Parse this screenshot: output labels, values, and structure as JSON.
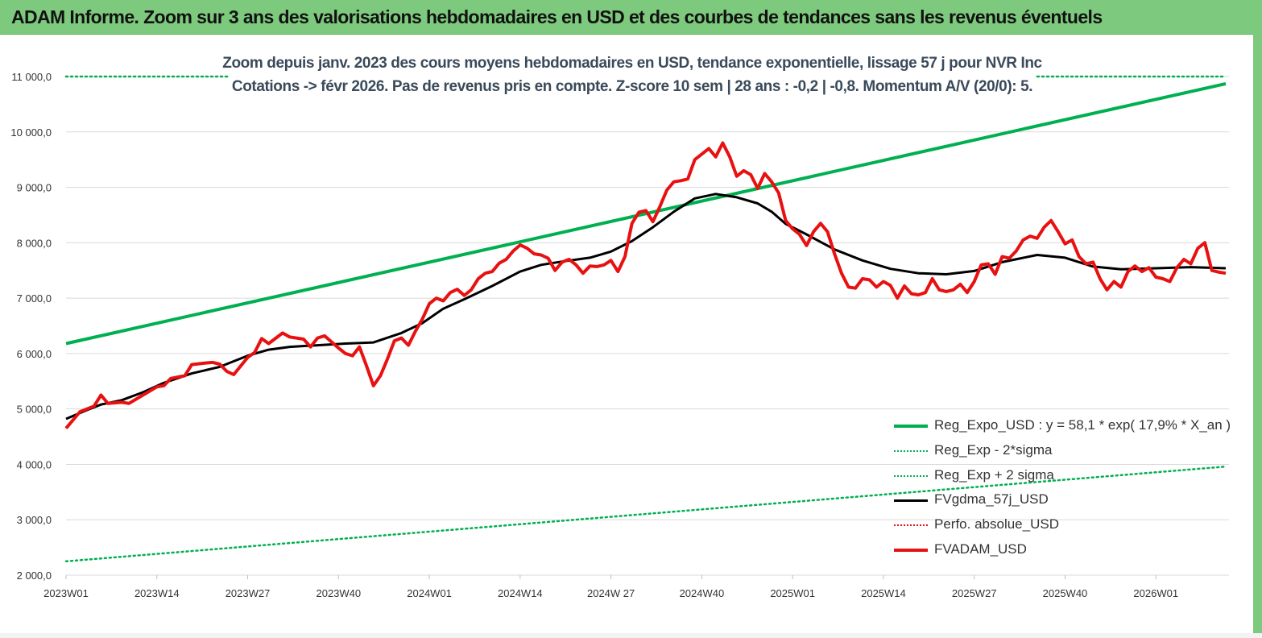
{
  "header": {
    "title": "ADAM Informe. Zoom sur 3 ans des valorisations hebdomadaires en USD et des courbes de tendances sans les revenus éventuels"
  },
  "colors": {
    "header_bg": "#7dc97d",
    "regression": "#00b050",
    "band": "#00b050",
    "smoothed": "#000000",
    "price": "#e81010",
    "perfo": "#e81010",
    "grid": "#d9d9d9"
  },
  "chart_data": {
    "type": "line",
    "title_line1": "Zoom depuis janv. 2023 des cours moyens hebdomadaires en USD, tendance exponentielle, lissage 57 j pour NVR Inc",
    "title_line2": "Cotations -> févr 2026.  Pas de revenus pris en compte. Z-score 10 sem | 28 ans : -0,2 | -0,8. Momentum A/V (20/0): 5.",
    "xlabel": "",
    "ylabel": "",
    "ylim": [
      2000,
      11000
    ],
    "yticks": [
      2000,
      3000,
      4000,
      5000,
      6000,
      7000,
      8000,
      9000,
      10000,
      11000
    ],
    "ytick_labels": [
      "2 000,0",
      "3 000,0",
      "4 000,0",
      "5 000,0",
      "6 000,0",
      "7 000,0",
      "8 000,0",
      "9 000,0",
      "10 000,0",
      "11 000,0"
    ],
    "x_range_weeks": [
      0,
      166
    ],
    "xtick_weeks": [
      0,
      13,
      26,
      39,
      52,
      65,
      78,
      91,
      104,
      117,
      130,
      143,
      156
    ],
    "xtick_labels": [
      "2023W01",
      "2023W14",
      "2023W27",
      "2023W40",
      "2024W01",
      "2024W14",
      "2024W 27",
      "2024W40",
      "2025W01",
      "2025W14",
      "2025W27",
      "2025W40",
      "2026W01"
    ],
    "grid": "horizontal",
    "legend_position": "bottom-right",
    "series": [
      {
        "name": "Reg_Expo_USD : y = 58,1 * exp( 17,9% *  X_an )",
        "style": "solid-thick",
        "color": "#00b050",
        "points": [
          [
            0,
            6180
          ],
          [
            166,
            10870
          ]
        ]
      },
      {
        "name": "Reg_Exp - 2*sigma",
        "style": "dotted",
        "color": "#00b050",
        "points": [
          [
            0,
            2250
          ],
          [
            166,
            3960
          ]
        ]
      },
      {
        "name": "Reg_Exp + 2 sigma",
        "style": "dotted",
        "color": "#00b050",
        "points": [
          [
            0,
            11000
          ],
          [
            166,
            11000
          ]
        ]
      },
      {
        "name": "FVgdma_57j_USD",
        "style": "solid",
        "color": "#000000",
        "points": [
          [
            0,
            4820
          ],
          [
            3,
            4980
          ],
          [
            5,
            5080
          ],
          [
            8,
            5160
          ],
          [
            11,
            5300
          ],
          [
            14,
            5470
          ],
          [
            18,
            5640
          ],
          [
            22,
            5760
          ],
          [
            26,
            5960
          ],
          [
            29,
            6070
          ],
          [
            32,
            6120
          ],
          [
            36,
            6150
          ],
          [
            40,
            6180
          ],
          [
            44,
            6200
          ],
          [
            48,
            6370
          ],
          [
            51,
            6550
          ],
          [
            54,
            6810
          ],
          [
            57,
            6980
          ],
          [
            61,
            7220
          ],
          [
            65,
            7480
          ],
          [
            68,
            7600
          ],
          [
            71,
            7660
          ],
          [
            75,
            7730
          ],
          [
            78,
            7840
          ],
          [
            81,
            8030
          ],
          [
            84,
            8280
          ],
          [
            87,
            8560
          ],
          [
            90,
            8800
          ],
          [
            93,
            8880
          ],
          [
            96,
            8820
          ],
          [
            99,
            8710
          ],
          [
            101,
            8560
          ],
          [
            103,
            8340
          ],
          [
            106,
            8150
          ],
          [
            110,
            7880
          ],
          [
            114,
            7680
          ],
          [
            118,
            7530
          ],
          [
            122,
            7450
          ],
          [
            126,
            7430
          ],
          [
            130,
            7490
          ],
          [
            134,
            7650
          ],
          [
            139,
            7780
          ],
          [
            143,
            7730
          ],
          [
            147,
            7570
          ],
          [
            151,
            7520
          ],
          [
            156,
            7540
          ],
          [
            161,
            7560
          ],
          [
            166,
            7540
          ]
        ]
      },
      {
        "name": "Perfo. absolue_USD",
        "style": "dotted",
        "color": "#e81010",
        "points": []
      },
      {
        "name": "FVADAM_USD",
        "style": "solid-thick",
        "color": "#e81010",
        "points": [
          [
            0,
            4650
          ],
          [
            2,
            4950
          ],
          [
            4,
            5050
          ],
          [
            5,
            5250
          ],
          [
            6,
            5100
          ],
          [
            8,
            5120
          ],
          [
            9,
            5100
          ],
          [
            11,
            5250
          ],
          [
            13,
            5400
          ],
          [
            14,
            5420
          ],
          [
            15,
            5550
          ],
          [
            17,
            5600
          ],
          [
            18,
            5800
          ],
          [
            20,
            5830
          ],
          [
            21,
            5840
          ],
          [
            22,
            5810
          ],
          [
            23,
            5680
          ],
          [
            24,
            5620
          ],
          [
            26,
            5930
          ],
          [
            27,
            6020
          ],
          [
            28,
            6270
          ],
          [
            29,
            6180
          ],
          [
            31,
            6370
          ],
          [
            32,
            6300
          ],
          [
            34,
            6260
          ],
          [
            35,
            6120
          ],
          [
            36,
            6280
          ],
          [
            37,
            6320
          ],
          [
            39,
            6100
          ],
          [
            40,
            6000
          ],
          [
            41,
            5960
          ],
          [
            42,
            6120
          ],
          [
            43,
            5780
          ],
          [
            44,
            5420
          ],
          [
            45,
            5600
          ],
          [
            46,
            5900
          ],
          [
            47,
            6230
          ],
          [
            48,
            6280
          ],
          [
            49,
            6150
          ],
          [
            50,
            6400
          ],
          [
            51,
            6620
          ],
          [
            52,
            6900
          ],
          [
            53,
            7000
          ],
          [
            54,
            6950
          ],
          [
            55,
            7100
          ],
          [
            56,
            7160
          ],
          [
            57,
            7050
          ],
          [
            58,
            7150
          ],
          [
            59,
            7350
          ],
          [
            60,
            7450
          ],
          [
            61,
            7480
          ],
          [
            62,
            7630
          ],
          [
            63,
            7700
          ],
          [
            64,
            7850
          ],
          [
            65,
            7960
          ],
          [
            66,
            7900
          ],
          [
            67,
            7800
          ],
          [
            68,
            7780
          ],
          [
            69,
            7720
          ],
          [
            70,
            7500
          ],
          [
            71,
            7650
          ],
          [
            72,
            7700
          ],
          [
            73,
            7600
          ],
          [
            74,
            7450
          ],
          [
            75,
            7580
          ],
          [
            76,
            7570
          ],
          [
            77,
            7600
          ],
          [
            78,
            7680
          ],
          [
            79,
            7480
          ],
          [
            80,
            7750
          ],
          [
            81,
            8350
          ],
          [
            82,
            8550
          ],
          [
            83,
            8580
          ],
          [
            84,
            8380
          ],
          [
            85,
            8650
          ],
          [
            86,
            8950
          ],
          [
            87,
            9100
          ],
          [
            88,
            9120
          ],
          [
            89,
            9150
          ],
          [
            90,
            9500
          ],
          [
            91,
            9600
          ],
          [
            92,
            9700
          ],
          [
            93,
            9550
          ],
          [
            94,
            9800
          ],
          [
            95,
            9550
          ],
          [
            96,
            9200
          ],
          [
            97,
            9300
          ],
          [
            98,
            9230
          ],
          [
            99,
            8980
          ],
          [
            100,
            9250
          ],
          [
            101,
            9100
          ],
          [
            102,
            8900
          ],
          [
            103,
            8400
          ],
          [
            104,
            8250
          ],
          [
            105,
            8150
          ],
          [
            106,
            7950
          ],
          [
            107,
            8200
          ],
          [
            108,
            8350
          ],
          [
            109,
            8200
          ],
          [
            110,
            7800
          ],
          [
            111,
            7450
          ],
          [
            112,
            7200
          ],
          [
            113,
            7180
          ],
          [
            114,
            7350
          ],
          [
            115,
            7330
          ],
          [
            116,
            7200
          ],
          [
            117,
            7300
          ],
          [
            118,
            7230
          ],
          [
            119,
            7000
          ],
          [
            120,
            7220
          ],
          [
            121,
            7080
          ],
          [
            122,
            7060
          ],
          [
            123,
            7100
          ],
          [
            124,
            7350
          ],
          [
            125,
            7150
          ],
          [
            126,
            7120
          ],
          [
            127,
            7150
          ],
          [
            128,
            7250
          ],
          [
            129,
            7100
          ],
          [
            130,
            7300
          ],
          [
            131,
            7600
          ],
          [
            132,
            7620
          ],
          [
            133,
            7430
          ],
          [
            134,
            7750
          ],
          [
            135,
            7720
          ],
          [
            136,
            7850
          ],
          [
            137,
            8050
          ],
          [
            138,
            8120
          ],
          [
            139,
            8080
          ],
          [
            140,
            8280
          ],
          [
            141,
            8400
          ],
          [
            142,
            8200
          ],
          [
            143,
            7980
          ],
          [
            144,
            8050
          ],
          [
            145,
            7750
          ],
          [
            146,
            7620
          ],
          [
            147,
            7650
          ],
          [
            148,
            7350
          ],
          [
            149,
            7150
          ],
          [
            150,
            7300
          ],
          [
            151,
            7200
          ],
          [
            152,
            7480
          ],
          [
            153,
            7580
          ],
          [
            154,
            7480
          ],
          [
            155,
            7550
          ],
          [
            156,
            7380
          ],
          [
            157,
            7350
          ],
          [
            158,
            7300
          ],
          [
            159,
            7550
          ],
          [
            160,
            7700
          ],
          [
            161,
            7620
          ],
          [
            162,
            7900
          ],
          [
            163,
            8000
          ],
          [
            164,
            7500
          ],
          [
            165,
            7470
          ],
          [
            166,
            7450
          ]
        ]
      }
    ]
  }
}
